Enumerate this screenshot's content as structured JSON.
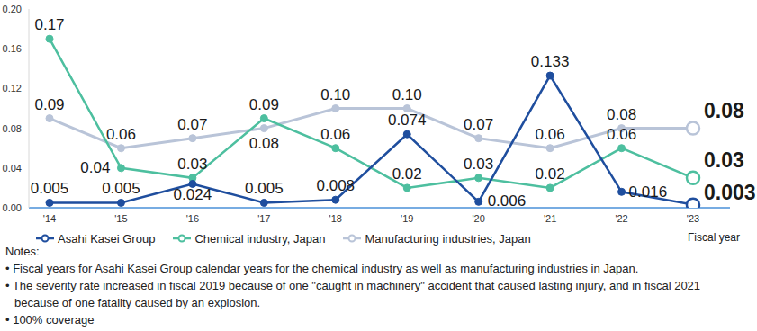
{
  "chart_data": {
    "type": "line",
    "x_label": "Fiscal year",
    "categories": [
      "'14",
      "'15",
      "'16",
      "'17",
      "'18",
      "'19",
      "'20",
      "'21",
      "'22",
      "'23"
    ],
    "series": [
      {
        "name": "Asahi Kasei Group",
        "color": "#1f4e9e",
        "marker": "circle",
        "values": [
          0.005,
          0.005,
          0.024,
          0.005,
          0.008,
          0.074,
          0.006,
          0.133,
          0.016,
          0.003
        ],
        "value_labels": [
          "0.005",
          "0.005",
          "0.024",
          "0.005",
          "0.008",
          "0.074",
          "0.006",
          "0.133",
          "0.016",
          "0.003"
        ]
      },
      {
        "name": "Chemical industry, Japan",
        "color": "#4dbf9f",
        "marker": "circle",
        "values": [
          0.17,
          0.04,
          0.03,
          0.09,
          0.06,
          0.02,
          0.03,
          0.02,
          0.06,
          0.03
        ],
        "value_labels": [
          "0.17",
          "0.04",
          "0.03",
          "0.09",
          "0.06",
          "0.02",
          "0.03",
          "0.02",
          "0.06",
          "0.03"
        ]
      },
      {
        "name": "Manufacturing industries, Japan",
        "color": "#b9c4d8",
        "marker": "circle",
        "values": [
          0.09,
          0.06,
          0.07,
          0.08,
          0.1,
          0.1,
          0.07,
          0.06,
          0.08,
          0.08
        ],
        "value_labels": [
          "0.09",
          "0.06",
          "0.07",
          "0.08",
          "0.10",
          "0.10",
          "0.07",
          "0.06",
          "0.08",
          "0.08"
        ]
      }
    ],
    "ylim": [
      0,
      0.2
    ],
    "yticks": [
      {
        "value": 0,
        "label": "0.00"
      },
      0.04,
      0.08,
      0.12,
      0.16,
      {
        "value": 0.2,
        "label": "0.20"
      }
    ],
    "grid": false,
    "legend": "bottom",
    "data_labels": true,
    "notes_title": "Notes:",
    "notes": [
      "• Fiscal years for Asahi Kasei Group calendar years for the chemical industry as well as manufacturing industries in Japan.",
      "• The severity rate increased in fiscal 2019 because of one \"caught in machinery\" accident that caused lasting injury, and in fiscal 2021 because of one fatality caused by an explosion.",
      "• 100% coverage"
    ]
  }
}
